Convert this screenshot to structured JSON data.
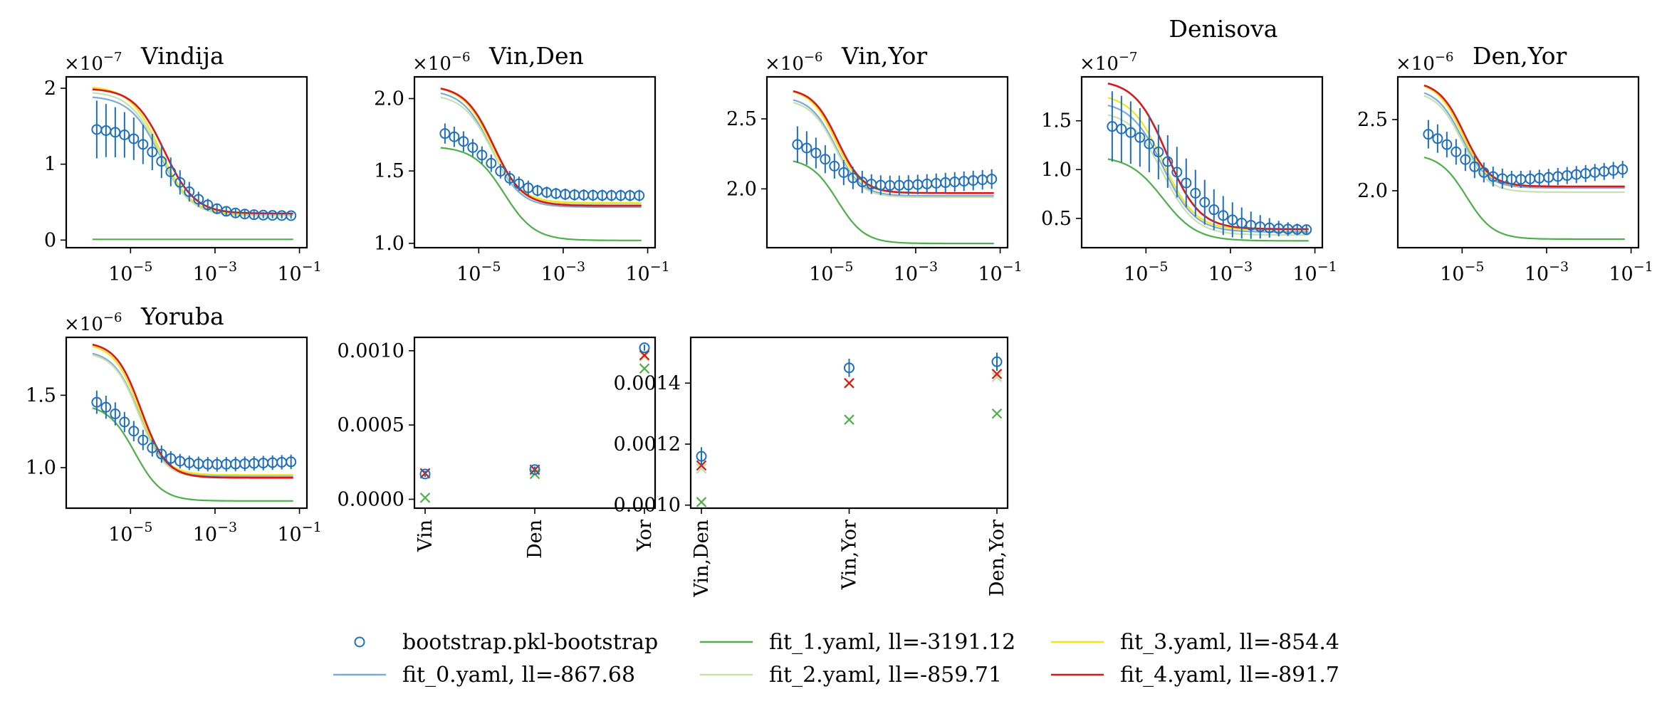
{
  "chart_data": [
    {
      "id": "p0",
      "type": "line",
      "title": "Vindija",
      "multiplier": "-7",
      "xscale": "log",
      "xlim": [
        3e-07,
        0.15
      ],
      "ylim": [
        -0.1,
        2.15
      ],
      "xticks": [
        {
          "v": 1e-05,
          "e": "-5"
        },
        {
          "v": 0.001,
          "e": "-3"
        },
        {
          "v": 0.1,
          "e": "-1"
        }
      ],
      "yticks": [
        {
          "v": 0,
          "label": "0"
        },
        {
          "v": 1,
          "label": "1"
        },
        {
          "v": 2,
          "label": "2"
        }
      ],
      "data": {
        "base": 1.48,
        "plateau": 0.32,
        "mid": -4.05,
        "width": 0.45,
        "n": 22,
        "err": [
          0.38,
          0.35,
          0.33,
          0.3,
          0.28,
          0.26,
          0.24,
          0.22,
          0.19,
          0.16,
          0.13,
          0.1,
          0.08,
          0.07,
          0.06,
          0.05,
          0.05,
          0.05,
          0.04,
          0.04,
          0.04,
          0.04
        ]
      },
      "fits": [
        {
          "base": 1.9,
          "plateau": 0.33,
          "mid": -4.3,
          "width": 0.36
        },
        {
          "base": 0.01,
          "plateau": 0.01,
          "mid": -4.3,
          "width": 0.4
        },
        {
          "base": 1.96,
          "plateau": 0.32,
          "mid": -4.3,
          "width": 0.36
        },
        {
          "base": 2.03,
          "plateau": 0.34,
          "mid": -4.3,
          "width": 0.36
        },
        {
          "base": 2.0,
          "plateau": 0.35,
          "mid": -4.2,
          "width": 0.36
        }
      ]
    },
    {
      "id": "p1",
      "type": "line",
      "title": "Vin,Den",
      "multiplier": "-6",
      "xscale": "log",
      "xlim": [
        3e-07,
        0.15
      ],
      "ylim": [
        0.97,
        2.15
      ],
      "xticks": [
        {
          "v": 1e-05,
          "e": "-5"
        },
        {
          "v": 0.001,
          "e": "-3"
        },
        {
          "v": 0.1,
          "e": "-1"
        }
      ],
      "yticks": [
        {
          "v": 1.0,
          "label": "1.0"
        },
        {
          "v": 1.5,
          "label": "1.5"
        },
        {
          "v": 2.0,
          "label": "2.0"
        }
      ],
      "data": {
        "base": 1.8,
        "plateau": 1.33,
        "mid": -4.75,
        "width": 0.45,
        "n": 22,
        "err": [
          0.07,
          0.07,
          0.07,
          0.06,
          0.06,
          0.06,
          0.05,
          0.05,
          0.05,
          0.05,
          0.04,
          0.04,
          0.04,
          0.04,
          0.04,
          0.04,
          0.04,
          0.04,
          0.04,
          0.04,
          0.04,
          0.04
        ]
      },
      "fits": [
        {
          "base": 2.06,
          "plateau": 1.25,
          "mid": -4.7,
          "width": 0.34
        },
        {
          "base": 1.67,
          "plateau": 1.02,
          "mid": -4.4,
          "width": 0.36
        },
        {
          "base": 2.03,
          "plateau": 1.27,
          "mid": -4.7,
          "width": 0.34
        },
        {
          "base": 2.09,
          "plateau": 1.28,
          "mid": -4.7,
          "width": 0.34
        },
        {
          "base": 2.09,
          "plateau": 1.26,
          "mid": -4.65,
          "width": 0.34
        }
      ]
    },
    {
      "id": "p2",
      "type": "line",
      "title": "Vin,Yor",
      "multiplier": "-6",
      "xscale": "log",
      "xlim": [
        3e-07,
        0.15
      ],
      "ylim": [
        1.58,
        2.8
      ],
      "xticks": [
        {
          "v": 1e-05,
          "e": "-5"
        },
        {
          "v": 0.001,
          "e": "-3"
        },
        {
          "v": 0.1,
          "e": "-1"
        }
      ],
      "yticks": [
        {
          "v": 2.0,
          "label": "2.0"
        },
        {
          "v": 2.5,
          "label": "2.5"
        }
      ],
      "data": {
        "base": 2.36,
        "plateau": 2.0,
        "mid": -5.0,
        "width": 0.4,
        "n": 22,
        "tail": 0.07,
        "err": [
          0.13,
          0.12,
          0.11,
          0.1,
          0.09,
          0.09,
          0.08,
          0.08,
          0.07,
          0.07,
          0.07,
          0.07,
          0.07,
          0.07,
          0.07,
          0.07,
          0.07,
          0.07,
          0.07,
          0.07,
          0.07,
          0.07
        ]
      },
      "fits": [
        {
          "base": 2.66,
          "plateau": 1.95,
          "mid": -4.9,
          "width": 0.3
        },
        {
          "base": 2.22,
          "plateau": 1.61,
          "mid": -4.85,
          "width": 0.32
        },
        {
          "base": 2.64,
          "plateau": 1.94,
          "mid": -4.9,
          "width": 0.3
        },
        {
          "base": 2.72,
          "plateau": 1.97,
          "mid": -4.9,
          "width": 0.3
        },
        {
          "base": 2.72,
          "plateau": 1.97,
          "mid": -4.85,
          "width": 0.3
        }
      ]
    },
    {
      "id": "p3",
      "type": "line",
      "title": "Denisova",
      "multiplier": "-7",
      "xscale": "log",
      "xlim": [
        3e-07,
        0.15
      ],
      "ylim": [
        0.2,
        1.95
      ],
      "xticks": [
        {
          "v": 1e-05,
          "e": "-5"
        },
        {
          "v": 0.001,
          "e": "-3"
        },
        {
          "v": 0.1,
          "e": "-1"
        }
      ],
      "yticks": [
        {
          "v": 0.5,
          "label": "0.5"
        },
        {
          "v": 1.0,
          "label": "1.0"
        },
        {
          "v": 1.5,
          "label": "1.5"
        }
      ],
      "data": {
        "base": 1.5,
        "plateau": 0.38,
        "mid": -4.2,
        "width": 0.55,
        "n": 22,
        "err": [
          0.36,
          0.34,
          0.32,
          0.3,
          0.29,
          0.28,
          0.27,
          0.26,
          0.25,
          0.24,
          0.23,
          0.21,
          0.2,
          0.18,
          0.16,
          0.14,
          0.12,
          0.1,
          0.08,
          0.07,
          0.06,
          0.05
        ]
      },
      "fits": [
        {
          "base": 1.7,
          "plateau": 0.36,
          "mid": -4.6,
          "width": 0.38
        },
        {
          "base": 1.14,
          "plateau": 0.27,
          "mid": -4.6,
          "width": 0.4
        },
        {
          "base": 1.6,
          "plateau": 0.33,
          "mid": -4.6,
          "width": 0.38
        },
        {
          "base": 1.78,
          "plateau": 0.38,
          "mid": -4.6,
          "width": 0.38
        },
        {
          "base": 1.92,
          "plateau": 0.39,
          "mid": -4.5,
          "width": 0.38
        }
      ]
    },
    {
      "id": "p4",
      "type": "line",
      "title": "Den,Yor",
      "multiplier": "-6",
      "xscale": "log",
      "xlim": [
        3e-07,
        0.15
      ],
      "ylim": [
        1.6,
        2.8
      ],
      "xticks": [
        {
          "v": 1e-05,
          "e": "-5"
        },
        {
          "v": 0.001,
          "e": "-3"
        },
        {
          "v": 0.1,
          "e": "-1"
        }
      ],
      "yticks": [
        {
          "v": 2.0,
          "label": "2.0"
        },
        {
          "v": 2.5,
          "label": "2.5"
        }
      ],
      "data": {
        "base": 2.45,
        "plateau": 2.05,
        "mid": -5.05,
        "width": 0.4,
        "n": 22,
        "tail": 0.1,
        "err": [
          0.1,
          0.1,
          0.09,
          0.09,
          0.08,
          0.08,
          0.07,
          0.07,
          0.07,
          0.06,
          0.06,
          0.06,
          0.06,
          0.06,
          0.06,
          0.06,
          0.06,
          0.06,
          0.06,
          0.06,
          0.06,
          0.06
        ]
      },
      "fits": [
        {
          "base": 2.72,
          "plateau": 2.02,
          "mid": -5.0,
          "width": 0.3
        },
        {
          "base": 2.26,
          "plateau": 1.66,
          "mid": -4.9,
          "width": 0.32
        },
        {
          "base": 2.7,
          "plateau": 1.99,
          "mid": -5.0,
          "width": 0.3
        },
        {
          "base": 2.77,
          "plateau": 2.03,
          "mid": -5.0,
          "width": 0.3
        },
        {
          "base": 2.77,
          "plateau": 2.03,
          "mid": -4.95,
          "width": 0.3
        }
      ]
    },
    {
      "id": "p5",
      "type": "line",
      "title": "Yoruba",
      "multiplier": "-6",
      "xscale": "log",
      "xlim": [
        3e-07,
        0.15
      ],
      "ylim": [
        0.72,
        1.9
      ],
      "xticks": [
        {
          "v": 1e-05,
          "e": "-5"
        },
        {
          "v": 0.001,
          "e": "-3"
        },
        {
          "v": 0.1,
          "e": "-1"
        }
      ],
      "yticks": [
        {
          "v": 1.0,
          "label": "1.0"
        },
        {
          "v": 1.5,
          "label": "1.5"
        }
      ],
      "data": {
        "base": 1.52,
        "plateau": 1.0,
        "mid": -4.95,
        "width": 0.45,
        "n": 22,
        "tail": 0.04,
        "err": [
          0.08,
          0.08,
          0.08,
          0.07,
          0.07,
          0.07,
          0.06,
          0.06,
          0.05,
          0.05,
          0.05,
          0.05,
          0.05,
          0.05,
          0.05,
          0.05,
          0.05,
          0.05,
          0.05,
          0.05,
          0.05,
          0.05
        ]
      },
      "fits": [
        {
          "base": 1.81,
          "plateau": 0.94,
          "mid": -4.8,
          "width": 0.3
        },
        {
          "base": 1.44,
          "plateau": 0.77,
          "mid": -4.9,
          "width": 0.32
        },
        {
          "base": 1.8,
          "plateau": 0.93,
          "mid": -4.8,
          "width": 0.3
        },
        {
          "base": 1.86,
          "plateau": 0.95,
          "mid": -4.8,
          "width": 0.3
        },
        {
          "base": 1.87,
          "plateau": 0.93,
          "mid": -4.75,
          "width": 0.3
        }
      ]
    },
    {
      "id": "p6",
      "type": "scatter",
      "categories": [
        "Vin",
        "Den",
        "Yor"
      ],
      "ylim": [
        -6e-05,
        0.00109
      ],
      "yticks": [
        {
          "v": 0.0,
          "label": "0.0000"
        },
        {
          "v": 0.0005,
          "label": "0.0005"
        },
        {
          "v": 0.001,
          "label": "0.0010"
        }
      ],
      "data": {
        "values": [
          0.00017,
          0.0002,
          0.00102
        ],
        "err": [
          2e-05,
          2e-05,
          2e-05
        ]
      },
      "fits": [
        {
          "values": [
            0.000175,
            0.000195,
            0.00097
          ]
        },
        {
          "values": [
            1e-05,
            0.00017,
            0.00088
          ]
        },
        {
          "values": [
            0.00017,
            0.00019,
            0.00096
          ]
        },
        {
          "values": [
            0.000175,
            0.0002,
            0.00097
          ]
        },
        {
          "values": [
            0.000175,
            0.0002,
            0.00097
          ]
        }
      ]
    },
    {
      "id": "p7",
      "type": "scatter",
      "categories": [
        "Vin,Den",
        "Vin,Yor",
        "Den,Yor"
      ],
      "ylim": [
        0.00099,
        0.00155
      ],
      "yticks": [
        {
          "v": 0.001,
          "label": "0.0010"
        },
        {
          "v": 0.0012,
          "label": "0.0012"
        },
        {
          "v": 0.0014,
          "label": "0.0014"
        }
      ],
      "data": {
        "values": [
          0.00116,
          0.00145,
          0.00147
        ],
        "err": [
          3e-05,
          3e-05,
          3e-05
        ]
      },
      "fits": [
        {
          "values": [
            0.00112,
            0.0014,
            0.00142
          ]
        },
        {
          "values": [
            0.00101,
            0.00128,
            0.0013
          ]
        },
        {
          "values": [
            0.00112,
            0.0014,
            0.00142
          ]
        },
        {
          "values": [
            0.00113,
            0.0014,
            0.00143
          ]
        },
        {
          "values": [
            0.00113,
            0.0014,
            0.00143
          ]
        }
      ]
    }
  ],
  "legend": {
    "placement": "bottom-center",
    "entries": [
      {
        "label": "bootstrap.pkl-bootstrap",
        "kind": "marker",
        "color": "#1f6fbf"
      },
      {
        "label": "fit_0.yaml, ll=-867.68",
        "kind": "line",
        "color": "#7eaad6"
      },
      {
        "label": "fit_1.yaml, ll=-3191.12",
        "kind": "line",
        "color": "#4daf4a"
      },
      {
        "label": "fit_2.yaml, ll=-859.71",
        "kind": "line",
        "color": "#c7e0b0"
      },
      {
        "label": "fit_3.yaml, ll=-854.4",
        "kind": "line",
        "color": "#f2e41a"
      },
      {
        "label": "fit_4.yaml, ll=-891.7",
        "kind": "line",
        "color": "#d7191c"
      }
    ]
  },
  "colors": {
    "data": "#1f6fbf",
    "fits": [
      "#7eaad6",
      "#4daf4a",
      "#c7e0b0",
      "#f2e41a",
      "#d7191c"
    ]
  }
}
